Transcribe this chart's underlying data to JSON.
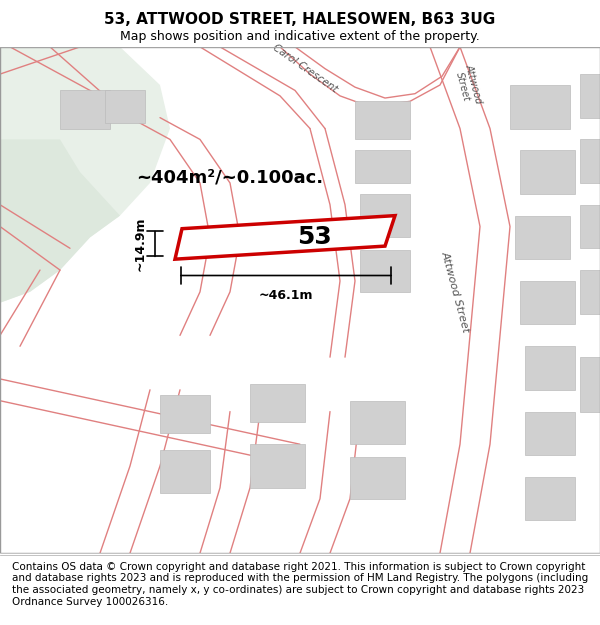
{
  "title_line1": "53, ATTWOOD STREET, HALESOWEN, B63 3UG",
  "title_line2": "Map shows position and indicative extent of the property.",
  "footer_text": "Contains OS data © Crown copyright and database right 2021. This information is subject to Crown copyright and database rights 2023 and is reproduced with the permission of HM Land Registry. The polygons (including the associated geometry, namely x, y co-ordinates) are subject to Crown copyright and database rights 2023 Ordnance Survey 100026316.",
  "area_label": "~404m²/~0.100ac.",
  "property_number": "53",
  "width_label": "~46.1m",
  "height_label": "~14.9m",
  "map_bg": "#f5f5f0",
  "plot_outline_color": "#cc0000",
  "road_line_color": "#cc3333",
  "building_color": "#d0d0d0",
  "green_area_color": "#e8f0e8",
  "map_border_color": "#999999",
  "title_fontsize": 11,
  "subtitle_fontsize": 9,
  "footer_fontsize": 7.5
}
